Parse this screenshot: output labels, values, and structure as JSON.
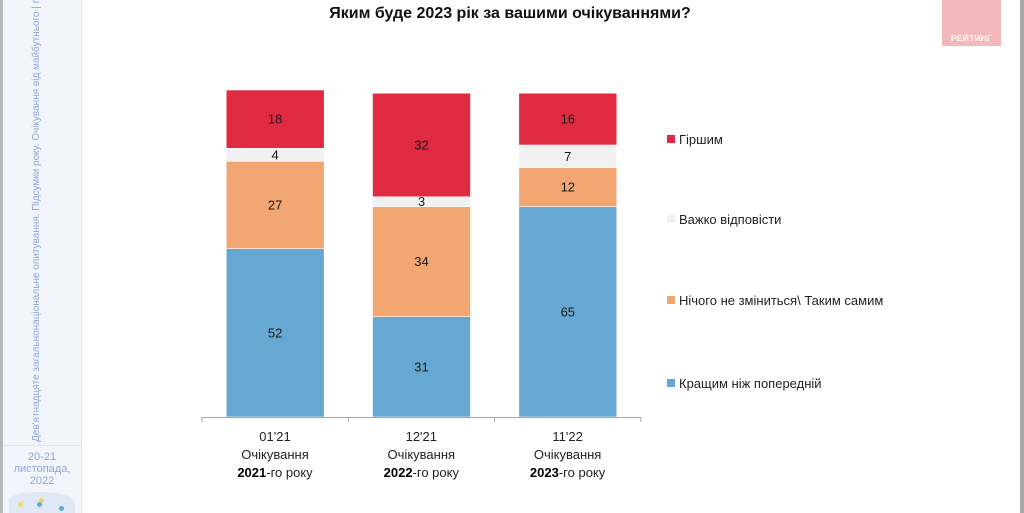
{
  "sidebar": {
    "caption": "Дев'ятнадцяте загальнонаціональне опитування. Підсумки року. Очікування від майбутнього | група РЕЙТИНГ",
    "date_line1": "20-21",
    "date_line2": "листопада, 2022"
  },
  "logo": {
    "text": "РЕЙТИНГ"
  },
  "chart_data": {
    "type": "bar",
    "stacked": true,
    "title": "Яким буде 2023 рік за вашими очікуваннями?",
    "xlabel": "",
    "ylabel": "",
    "ylim": [
      0,
      101
    ],
    "grid": false,
    "legend_position": "right",
    "categories": [
      {
        "period": "01'21",
        "line2": "Очікування",
        "year": "2021",
        "suffix": "-го року"
      },
      {
        "period": "12'21",
        "line2": "Очікування",
        "year": "2022",
        "suffix": "-го року"
      },
      {
        "period": "11'22",
        "line2": "Очікування",
        "year": "2023",
        "suffix": "-го року"
      }
    ],
    "series": [
      {
        "name": "Кращим ніж попередній",
        "color": "#67a8d3",
        "values": [
          52,
          31,
          65
        ]
      },
      {
        "name": "Нічого не зміниться\\ Таким самим",
        "color": "#f2a672",
        "values": [
          27,
          34,
          12
        ]
      },
      {
        "name": "Важко відповісти",
        "color": "#f1f1f1",
        "values": [
          4,
          3,
          7
        ]
      },
      {
        "name": "Гіршим",
        "color": "#e02a41",
        "values": [
          18,
          32,
          16
        ]
      }
    ],
    "legend_order": [
      3,
      2,
      1,
      0
    ]
  }
}
